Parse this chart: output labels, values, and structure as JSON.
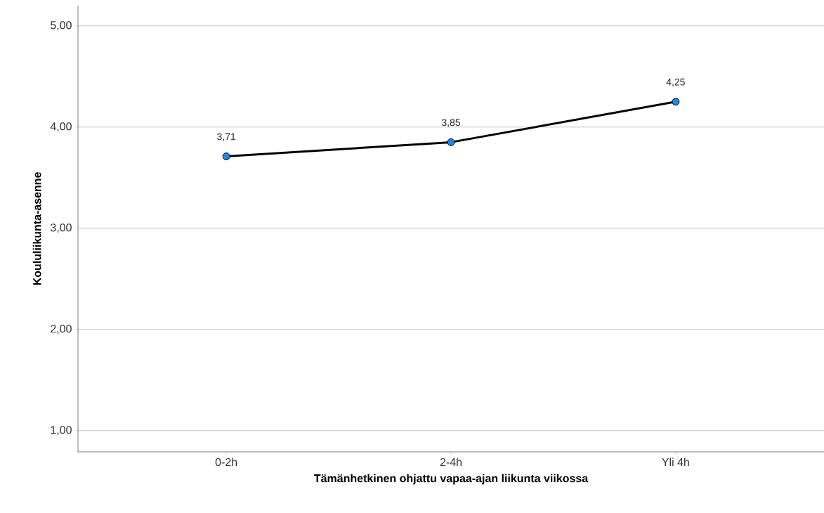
{
  "chart_data": {
    "type": "line",
    "xlabel": "Tämänhetkinen ohjattu vapaa-ajan liikunta viikossa",
    "ylabel": "Koululiikunta-asenne",
    "categories": [
      "0-2h",
      "2-4h",
      "Yli 4h"
    ],
    "series": [
      {
        "color": "#000000",
        "values": [
          3.71,
          3.85,
          4.25
        ],
        "value_labels": [
          "3,71",
          "3,85",
          "4,25"
        ]
      }
    ],
    "ylim": [
      0.79,
      5.2
    ],
    "yticks": [
      {
        "value": 1,
        "label": "1,00"
      },
      {
        "value": 2,
        "label": "2,00"
      },
      {
        "value": 3,
        "label": "3,00"
      },
      {
        "value": 4,
        "label": "4,00"
      },
      {
        "value": 5,
        "label": "5,00"
      }
    ],
    "grid": "y",
    "marker": "circle",
    "line_style": "solid"
  }
}
